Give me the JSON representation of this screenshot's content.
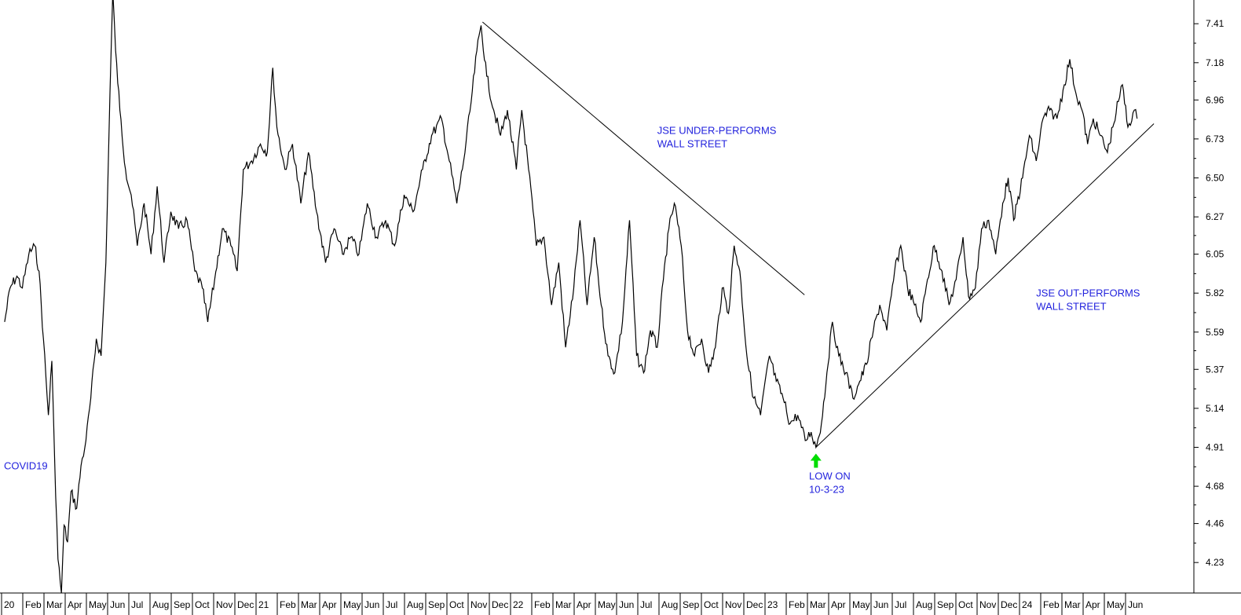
{
  "chart_data": {
    "type": "line",
    "title": "",
    "xlabel": "",
    "ylabel": "",
    "ylim": [
      4.05,
      7.55
    ],
    "y_ticks": [
      "7.41",
      "7.18",
      "6.96",
      "6.73",
      "6.50",
      "6.27",
      "6.05",
      "5.82",
      "5.59",
      "5.37",
      "5.14",
      "4.91",
      "4.68",
      "4.46",
      "4.23"
    ],
    "x_tick_labels": [
      "20",
      "Feb",
      "Mar",
      "Apr",
      "May",
      "Jun",
      "Jul",
      "Aug",
      "Sep",
      "Oct",
      "Nov",
      "Dec",
      "21",
      "Feb",
      "Mar",
      "Apr",
      "May",
      "Jun",
      "Jul",
      "Aug",
      "Sep",
      "Oct",
      "Nov",
      "Dec",
      "22",
      "Feb",
      "Mar",
      "Apr",
      "May",
      "Jun",
      "Jul",
      "Aug",
      "Sep",
      "Oct",
      "Nov",
      "Dec",
      "23",
      "Feb",
      "Mar",
      "Apr",
      "May",
      "Jun",
      "Jul",
      "Aug",
      "Sep",
      "Oct",
      "Nov",
      "Dec",
      "24",
      "Feb",
      "Mar",
      "Apr",
      "May",
      "Jun"
    ],
    "x_range": [
      "2020-01",
      "2024-06"
    ],
    "grid": false,
    "series": [
      {
        "color": "#000000",
        "points": [
          [
            "2020-01-02",
            5.65
          ],
          [
            "2020-01-10",
            5.85
          ],
          [
            "2020-01-20",
            5.92
          ],
          [
            "2020-01-28",
            5.85
          ],
          [
            "2020-02-06",
            6.05
          ],
          [
            "2020-02-14",
            6.1
          ],
          [
            "2020-02-20",
            5.95
          ],
          [
            "2020-02-26",
            5.55
          ],
          [
            "2020-03-04",
            5.1
          ],
          [
            "2020-03-09",
            5.42
          ],
          [
            "2020-03-13",
            4.85
          ],
          [
            "2020-03-18",
            4.25
          ],
          [
            "2020-03-23",
            4.05
          ],
          [
            "2020-03-27",
            4.45
          ],
          [
            "2020-04-01",
            4.35
          ],
          [
            "2020-04-06",
            4.65
          ],
          [
            "2020-04-14",
            4.55
          ],
          [
            "2020-04-20",
            4.8
          ],
          [
            "2020-04-27",
            4.95
          ],
          [
            "2020-05-04",
            5.2
          ],
          [
            "2020-05-12",
            5.55
          ],
          [
            "2020-05-19",
            5.45
          ],
          [
            "2020-05-26",
            6.0
          ],
          [
            "2020-06-01",
            7.0
          ],
          [
            "2020-06-05",
            7.6
          ],
          [
            "2020-06-09",
            7.25
          ],
          [
            "2020-06-15",
            6.9
          ],
          [
            "2020-06-23",
            6.55
          ],
          [
            "2020-07-01",
            6.4
          ],
          [
            "2020-07-10",
            6.1
          ],
          [
            "2020-07-20",
            6.35
          ],
          [
            "2020-07-30",
            6.05
          ],
          [
            "2020-08-08",
            6.45
          ],
          [
            "2020-08-18",
            6.0
          ],
          [
            "2020-08-28",
            6.3
          ],
          [
            "2020-09-08",
            6.2
          ],
          [
            "2020-09-20",
            6.25
          ],
          [
            "2020-10-01",
            5.95
          ],
          [
            "2020-10-12",
            5.85
          ],
          [
            "2020-10-20",
            5.65
          ],
          [
            "2020-10-30",
            5.9
          ],
          [
            "2020-11-10",
            6.2
          ],
          [
            "2020-11-22",
            6.1
          ],
          [
            "2020-12-01",
            5.95
          ],
          [
            "2020-12-10",
            6.55
          ],
          [
            "2020-12-22",
            6.6
          ],
          [
            "2021-01-04",
            6.7
          ],
          [
            "2021-01-14",
            6.65
          ],
          [
            "2021-01-22",
            7.15
          ],
          [
            "2021-01-28",
            6.8
          ],
          [
            "2021-02-08",
            6.55
          ],
          [
            "2021-02-18",
            6.7
          ],
          [
            "2021-03-01",
            6.35
          ],
          [
            "2021-03-12",
            6.65
          ],
          [
            "2021-03-24",
            6.3
          ],
          [
            "2021-04-06",
            6.0
          ],
          [
            "2021-04-18",
            6.2
          ],
          [
            "2021-04-30",
            6.05
          ],
          [
            "2021-05-12",
            6.15
          ],
          [
            "2021-05-24",
            6.05
          ],
          [
            "2021-06-05",
            6.35
          ],
          [
            "2021-06-18",
            6.15
          ],
          [
            "2021-07-01",
            6.25
          ],
          [
            "2021-07-14",
            6.1
          ],
          [
            "2021-07-28",
            6.4
          ],
          [
            "2021-08-10",
            6.3
          ],
          [
            "2021-08-24",
            6.55
          ],
          [
            "2021-09-06",
            6.75
          ],
          [
            "2021-09-20",
            6.85
          ],
          [
            "2021-10-01",
            6.6
          ],
          [
            "2021-10-12",
            6.35
          ],
          [
            "2021-10-22",
            6.6
          ],
          [
            "2021-11-02",
            6.95
          ],
          [
            "2021-11-10",
            7.25
          ],
          [
            "2021-11-16",
            7.4
          ],
          [
            "2021-11-24",
            7.1
          ],
          [
            "2021-12-04",
            6.9
          ],
          [
            "2021-12-14",
            6.75
          ],
          [
            "2021-12-24",
            6.9
          ],
          [
            "2022-01-06",
            6.55
          ],
          [
            "2022-01-14",
            6.9
          ],
          [
            "2022-01-24",
            6.55
          ],
          [
            "2022-02-04",
            6.1
          ],
          [
            "2022-02-14",
            6.15
          ],
          [
            "2022-02-24",
            5.75
          ],
          [
            "2022-03-06",
            6.0
          ],
          [
            "2022-03-16",
            5.5
          ],
          [
            "2022-03-28",
            5.85
          ],
          [
            "2022-04-06",
            6.25
          ],
          [
            "2022-04-16",
            5.75
          ],
          [
            "2022-04-26",
            6.15
          ],
          [
            "2022-05-06",
            5.75
          ],
          [
            "2022-05-16",
            5.45
          ],
          [
            "2022-05-26",
            5.35
          ],
          [
            "2022-06-06",
            5.65
          ],
          [
            "2022-06-16",
            6.25
          ],
          [
            "2022-06-26",
            5.45
          ],
          [
            "2022-07-06",
            5.35
          ],
          [
            "2022-07-16",
            5.6
          ],
          [
            "2022-07-26",
            5.5
          ],
          [
            "2022-08-04",
            5.9
          ],
          [
            "2022-08-12",
            6.2
          ],
          [
            "2022-08-20",
            6.35
          ],
          [
            "2022-08-30",
            6.1
          ],
          [
            "2022-09-08",
            5.6
          ],
          [
            "2022-09-18",
            5.45
          ],
          [
            "2022-09-28",
            5.55
          ],
          [
            "2022-10-08",
            5.35
          ],
          [
            "2022-10-18",
            5.5
          ],
          [
            "2022-10-28",
            5.85
          ],
          [
            "2022-11-06",
            5.7
          ],
          [
            "2022-11-14",
            6.1
          ],
          [
            "2022-11-22",
            5.95
          ],
          [
            "2022-12-02",
            5.45
          ],
          [
            "2022-12-12",
            5.2
          ],
          [
            "2022-12-22",
            5.1
          ],
          [
            "2023-01-04",
            5.45
          ],
          [
            "2023-01-14",
            5.3
          ],
          [
            "2023-01-24",
            5.2
          ],
          [
            "2023-02-03",
            5.05
          ],
          [
            "2023-02-13",
            5.1
          ],
          [
            "2023-02-23",
            4.95
          ],
          [
            "2023-03-03",
            5.0
          ],
          [
            "2023-03-10",
            4.91
          ],
          [
            "2023-03-18",
            5.05
          ],
          [
            "2023-03-26",
            5.35
          ],
          [
            "2023-04-03",
            5.65
          ],
          [
            "2023-04-12",
            5.45
          ],
          [
            "2023-04-22",
            5.35
          ],
          [
            "2023-05-02",
            5.2
          ],
          [
            "2023-05-12",
            5.3
          ],
          [
            "2023-05-22",
            5.4
          ],
          [
            "2023-06-01",
            5.6
          ],
          [
            "2023-06-10",
            5.75
          ],
          [
            "2023-06-20",
            5.6
          ],
          [
            "2023-07-01",
            5.95
          ],
          [
            "2023-07-10",
            6.1
          ],
          [
            "2023-07-20",
            5.85
          ],
          [
            "2023-07-30",
            5.75
          ],
          [
            "2023-08-08",
            5.65
          ],
          [
            "2023-08-18",
            5.9
          ],
          [
            "2023-08-28",
            6.1
          ],
          [
            "2023-09-08",
            5.95
          ],
          [
            "2023-09-18",
            5.75
          ],
          [
            "2023-09-28",
            5.9
          ],
          [
            "2023-10-08",
            6.15
          ],
          [
            "2023-10-16",
            5.8
          ],
          [
            "2023-10-26",
            5.85
          ],
          [
            "2023-11-04",
            6.2
          ],
          [
            "2023-11-14",
            6.25
          ],
          [
            "2023-11-24",
            6.05
          ],
          [
            "2023-12-04",
            6.35
          ],
          [
            "2023-12-12",
            6.5
          ],
          [
            "2023-12-20",
            6.25
          ],
          [
            "2024-01-02",
            6.5
          ],
          [
            "2024-01-12",
            6.75
          ],
          [
            "2024-01-22",
            6.6
          ],
          [
            "2024-02-01",
            6.85
          ],
          [
            "2024-02-10",
            6.9
          ],
          [
            "2024-02-20",
            6.85
          ],
          [
            "2024-03-01",
            7.05
          ],
          [
            "2024-03-09",
            7.2
          ],
          [
            "2024-03-18",
            7.0
          ],
          [
            "2024-03-27",
            6.9
          ],
          [
            "2024-04-04",
            6.7
          ],
          [
            "2024-04-12",
            6.85
          ],
          [
            "2024-04-22",
            6.75
          ],
          [
            "2024-05-02",
            6.65
          ],
          [
            "2024-05-10",
            6.8
          ],
          [
            "2024-05-18",
            6.95
          ],
          [
            "2024-05-24",
            7.05
          ],
          [
            "2024-06-01",
            6.8
          ],
          [
            "2024-06-10",
            6.9
          ],
          [
            "2024-06-14",
            6.85
          ]
        ]
      }
    ],
    "trendlines": [
      {
        "color": "#000000",
        "from": [
          "2021-11-18",
          7.42
        ],
        "to": [
          "2023-02-22",
          5.81
        ]
      },
      {
        "color": "#000000",
        "from": [
          "2023-03-10",
          4.91
        ],
        "to": [
          "2024-07-08",
          6.82
        ]
      }
    ],
    "annotations": [
      {
        "lines": [
          "JSE UNDER-PERFORMS",
          "WALL STREET"
        ],
        "at": [
          "2022-07-26",
          6.76
        ],
        "color": "#2222dd"
      },
      {
        "lines": [
          "JSE OUT-PERFORMS",
          "WALL STREET"
        ],
        "at": [
          "2024-01-22",
          5.8
        ],
        "color": "#2222dd"
      },
      {
        "lines": [
          "COVID19"
        ],
        "at": [
          "2020-01-01",
          4.78
        ],
        "color": "#2222dd"
      },
      {
        "lines": [
          "LOW ON",
          "10-3-23"
        ],
        "at": [
          "2023-02-28",
          4.72
        ],
        "color": "#2222dd"
      }
    ],
    "low_marker": {
      "at": [
        "2023-03-10",
        4.91
      ],
      "color": "#00dd00",
      "icon": "up-arrow-icon"
    }
  }
}
